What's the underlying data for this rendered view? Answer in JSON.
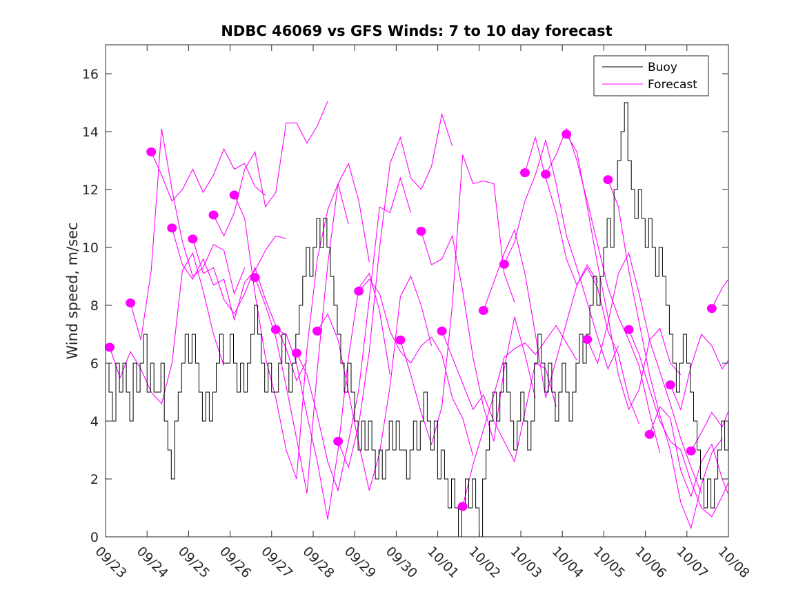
{
  "chart_data": {
    "type": "line",
    "title": "NDBC 46069 vs GFS Winds: 7 to 10 day forecast",
    "xlabel": "",
    "ylabel": "Wind speed, m/sec",
    "x_unit": "days since 09/23 00:00",
    "xlim": [
      0,
      15
    ],
    "ylim": [
      0,
      17
    ],
    "yticks": [
      0,
      2,
      4,
      6,
      8,
      10,
      12,
      14,
      16
    ],
    "xtick_labels": [
      "09/23",
      "09/24",
      "09/25",
      "09/26",
      "09/27",
      "09/28",
      "09/29",
      "09/30",
      "10/01",
      "10/02",
      "10/03",
      "10/04",
      "10/05",
      "10/06",
      "10/07",
      "10/08"
    ],
    "grid": false,
    "legend": {
      "placement": "top-right",
      "entries": [
        {
          "label": "Buoy",
          "color": "#000000"
        },
        {
          "label": "Forecast",
          "color": "#ff00ff"
        }
      ]
    },
    "colors": {
      "buoy": "#000000",
      "forecast": "#ff00ff",
      "axis": "#262626"
    },
    "buoy": {
      "name": "Buoy",
      "step_days": 0.0833,
      "values": [
        6,
        5,
        4,
        6,
        5,
        6,
        5,
        4,
        6,
        5,
        6,
        7,
        5,
        6,
        5,
        5,
        6,
        4,
        3,
        2,
        4,
        5,
        6,
        7,
        6,
        7,
        6,
        5,
        4,
        5,
        4,
        5,
        6,
        7,
        6,
        6,
        7,
        6,
        5,
        6,
        5,
        6,
        7,
        8,
        7,
        6,
        5,
        6,
        5,
        5,
        6,
        7,
        6,
        5,
        6,
        7,
        8,
        9,
        10,
        9,
        10,
        11,
        10,
        11,
        10,
        9,
        8,
        7,
        6,
        5,
        6,
        5,
        4,
        3,
        4,
        3,
        4,
        3,
        2,
        3,
        2,
        3,
        4,
        3,
        4,
        3,
        3,
        2,
        3,
        4,
        3,
        4,
        5,
        4,
        3,
        4,
        2,
        3,
        2,
        1,
        2,
        1,
        0,
        1,
        2,
        1,
        2,
        1,
        0,
        2,
        3,
        4,
        5,
        4,
        5,
        6,
        5,
        4,
        3,
        4,
        5,
        4,
        3,
        4,
        6,
        7,
        6,
        5,
        6,
        5,
        4,
        5,
        6,
        5,
        4,
        5,
        6,
        7,
        6,
        7,
        8,
        9,
        8,
        9,
        10,
        11,
        10,
        12,
        13,
        14,
        15,
        13,
        12,
        11,
        12,
        11,
        10,
        11,
        10,
        9,
        10,
        9,
        8,
        7,
        6,
        5,
        6,
        7,
        6,
        5,
        4,
        3,
        2,
        1,
        2,
        1,
        2,
        3,
        4,
        3,
        4,
        5,
        4,
        3,
        4
      ]
    },
    "forecasts": [
      {
        "start": 0.1,
        "step_days": 0.25,
        "values": [
          6.55,
          5.5,
          6.4,
          5.8,
          5.0,
          4.6,
          6.0,
          9.2,
          9.8,
          8.5,
          7.0,
          5.9
        ]
      },
      {
        "start": 0.6,
        "step_days": 0.25,
        "values": [
          8.08,
          6.8,
          9.2,
          14.1,
          12.0,
          10.2,
          9.0,
          9.3,
          10.1,
          9.9,
          8.4,
          9.3
        ]
      },
      {
        "start": 1.1,
        "step_days": 0.25,
        "values": [
          13.3,
          12.5,
          11.6,
          12.0,
          12.7,
          11.9,
          12.5,
          13.4,
          12.7,
          12.9,
          12.1,
          11.8
        ]
      },
      {
        "start": 1.6,
        "step_days": 0.25,
        "values": [
          10.67,
          9.4,
          8.9,
          9.6,
          8.7,
          8.9,
          7.5,
          8.8,
          9.2,
          9.9,
          10.4,
          10.3
        ]
      },
      {
        "start": 2.1,
        "step_days": 0.25,
        "values": [
          10.29,
          9.1,
          9.3,
          8.2,
          7.7,
          8.4,
          9.3,
          8.2,
          7.3,
          6.5,
          5.4,
          6.1
        ]
      },
      {
        "start": 2.6,
        "step_days": 0.25,
        "values": [
          11.12,
          10.4,
          11.2,
          12.7,
          13.3,
          11.4,
          11.9,
          14.3,
          14.3,
          13.6,
          14.2,
          15.05
        ]
      },
      {
        "start": 3.1,
        "step_days": 0.25,
        "values": [
          11.81,
          11.0,
          8.4,
          6.2,
          4.8,
          3.0,
          2.0,
          6.5,
          9.6,
          11.3,
          12.2,
          10.8
        ]
      },
      {
        "start": 3.6,
        "step_days": 0.25,
        "values": [
          8.96,
          8.0,
          6.9,
          5.2,
          3.4,
          1.5,
          5.8,
          9.4,
          12.2,
          12.9,
          11.6,
          9.5
        ]
      },
      {
        "start": 4.1,
        "step_days": 0.25,
        "values": [
          7.16,
          7.0,
          6.0,
          4.2,
          2.6,
          0.6,
          3.0,
          6.2,
          8.6,
          9.1,
          7.8,
          5.6
        ]
      },
      {
        "start": 4.6,
        "step_days": 0.25,
        "values": [
          6.35,
          5.6,
          4.2,
          2.6,
          1.6,
          3.3,
          5.1,
          8.2,
          11.4,
          11.2,
          12.4,
          11.2
        ]
      },
      {
        "start": 5.1,
        "step_days": 0.25,
        "values": [
          7.11,
          7.7,
          6.8,
          5.0,
          3.2,
          1.6,
          2.9,
          5.2,
          8.3,
          9.0,
          8.0,
          6.6
        ]
      },
      {
        "start": 5.6,
        "step_days": 0.25,
        "values": [
          3.3,
          2.4,
          3.9,
          6.4,
          10.0,
          12.9,
          13.8,
          12.4,
          12.0,
          12.8,
          14.6,
          13.5
        ]
      },
      {
        "start": 6.1,
        "step_days": 0.25,
        "values": [
          8.49,
          8.9,
          8.4,
          7.1,
          6.4,
          6.0,
          6.6,
          6.9,
          6.3,
          4.8,
          4.1,
          2.8
        ]
      },
      {
        "start": 7.1,
        "step_days": 0.25,
        "values": [
          6.8,
          5.6,
          4.3,
          3.2,
          4.5,
          8.0,
          13.2,
          12.2,
          12.3,
          12.2,
          9.1,
          8.1
        ]
      },
      {
        "start": 7.6,
        "step_days": 0.25,
        "values": [
          10.56,
          9.4,
          9.6,
          10.4,
          8.5,
          6.2,
          4.5,
          3.3,
          5.8,
          7.6,
          6.3,
          4.8
        ]
      },
      {
        "start": 8.1,
        "step_days": 0.25,
        "values": [
          7.11,
          6.2,
          5.3,
          4.4,
          4.9,
          4.0,
          3.3,
          2.6,
          4.3,
          6.0,
          5.8,
          4.5
        ]
      },
      {
        "start": 8.6,
        "step_days": 0.25,
        "values": [
          1.05,
          2.5,
          3.7,
          4.9,
          6.2,
          6.5,
          6.7,
          6.3,
          6.8,
          7.3,
          6.7,
          6.1
        ]
      },
      {
        "start": 9.1,
        "step_days": 0.25,
        "values": [
          7.82,
          8.8,
          9.8,
          10.6,
          9.1,
          7.0,
          4.8,
          6.1,
          7.4,
          8.7,
          9.4,
          8.8
        ]
      },
      {
        "start": 9.6,
        "step_days": 0.25,
        "values": [
          9.42,
          10.2,
          11.6,
          12.5,
          13.7,
          12.2,
          10.4,
          9.3,
          8.1,
          6.9,
          5.8,
          6.6
        ]
      },
      {
        "start": 10.1,
        "step_days": 0.25,
        "values": [
          12.58,
          13.8,
          12.4,
          11.2,
          9.6,
          8.7,
          9.3,
          8.6,
          7.1,
          6.3,
          4.8,
          3.9
        ]
      },
      {
        "start": 10.6,
        "step_days": 0.25,
        "values": [
          12.53,
          13.2,
          14.1,
          13.0,
          11.6,
          10.1,
          8.6,
          7.6,
          6.8,
          5.9,
          4.3,
          2.9
        ]
      },
      {
        "start": 11.1,
        "step_days": 0.25,
        "values": [
          13.91,
          13.3,
          11.4,
          9.4,
          7.6,
          5.6,
          4.4,
          5.1,
          6.8,
          7.2,
          6.0,
          5.6
        ]
      },
      {
        "start": 11.6,
        "step_days": 0.25,
        "values": [
          6.82,
          6.0,
          7.4,
          9.1,
          9.8,
          8.4,
          6.8,
          5.7,
          4.6,
          3.4,
          2.4,
          1.5
        ]
      },
      {
        "start": 12.1,
        "step_days": 0.25,
        "values": [
          12.34,
          11.4,
          9.2,
          7.4,
          5.6,
          4.2,
          3.0,
          1.2,
          0.3,
          1.8,
          2.9,
          3.4
        ]
      },
      {
        "start": 12.6,
        "step_days": 0.25,
        "values": [
          7.16,
          6.3,
          5.1,
          4.0,
          3.3,
          3.0,
          1.9,
          1.0,
          0.7,
          1.4,
          2.2,
          3.0
        ]
      },
      {
        "start": 13.1,
        "step_days": 0.25,
        "values": [
          3.54,
          4.5,
          4.1,
          2.3,
          1.4,
          2.6,
          3.2,
          2.0,
          1.1,
          0.8,
          1.6,
          3.7
        ]
      },
      {
        "start": 13.6,
        "step_days": 0.25,
        "values": [
          5.25,
          4.4,
          5.9,
          7.0,
          6.6,
          5.8,
          6.3,
          6.5,
          5.8,
          5.5,
          6.2,
          7.4
        ]
      },
      {
        "start": 14.1,
        "step_days": 0.25,
        "values": [
          2.97,
          3.6,
          4.3,
          3.8,
          4.7,
          3.9,
          2.5,
          3.6,
          4.8
        ]
      },
      {
        "start": 14.6,
        "step_days": 0.25,
        "values": [
          7.89,
          8.6,
          9.1,
          11.0
        ]
      }
    ]
  }
}
